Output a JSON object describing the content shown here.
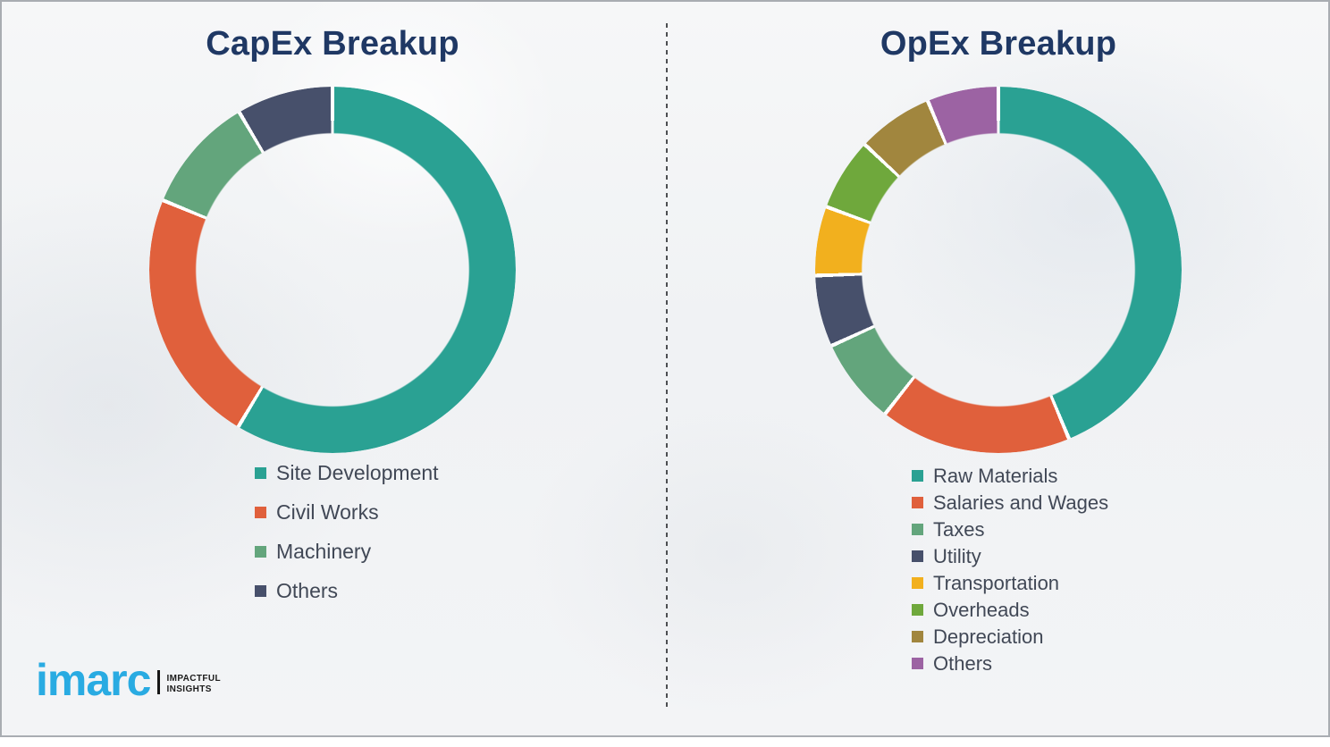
{
  "chart_data": [
    {
      "type": "pie",
      "donut": true,
      "title": "CapEx Breakup",
      "categories": [
        "Site Development",
        "Civil Works",
        "Machinery",
        "Others"
      ],
      "values": [
        58.6,
        22.6,
        10.3,
        8.5
      ],
      "colors": [
        "#2aa193",
        "#e0603c",
        "#63a57c",
        "#47506b"
      ],
      "start_angle_deg": 0,
      "direction": "clockwise",
      "legend_position": "below-left",
      "data_labels": "none"
    },
    {
      "type": "pie",
      "donut": true,
      "title": "OpEx Breakup",
      "categories": [
        "Raw Materials",
        "Salaries and Wages",
        "Taxes",
        "Utility",
        "Transportation",
        "Overheads",
        "Depreciation",
        "Others"
      ],
      "values": [
        43.7,
        16.9,
        7.6,
        6.3,
        6.1,
        6.4,
        6.7,
        6.3
      ],
      "colors": [
        "#2aa193",
        "#e0603c",
        "#63a57c",
        "#47506b",
        "#f2b01e",
        "#6fa83c",
        "#a1863e",
        "#9c63a3"
      ],
      "start_angle_deg": 0,
      "direction": "clockwise",
      "legend_position": "below-left",
      "data_labels": "none"
    }
  ],
  "logo": {
    "brand": "imarc",
    "tagline_line1": "Impactful",
    "tagline_line2": "Insights",
    "brand_color": "#29abe2"
  },
  "style": {
    "title_color": "#1f3864",
    "legend_text_color": "#414856",
    "divider_color": "#4d4f52"
  }
}
